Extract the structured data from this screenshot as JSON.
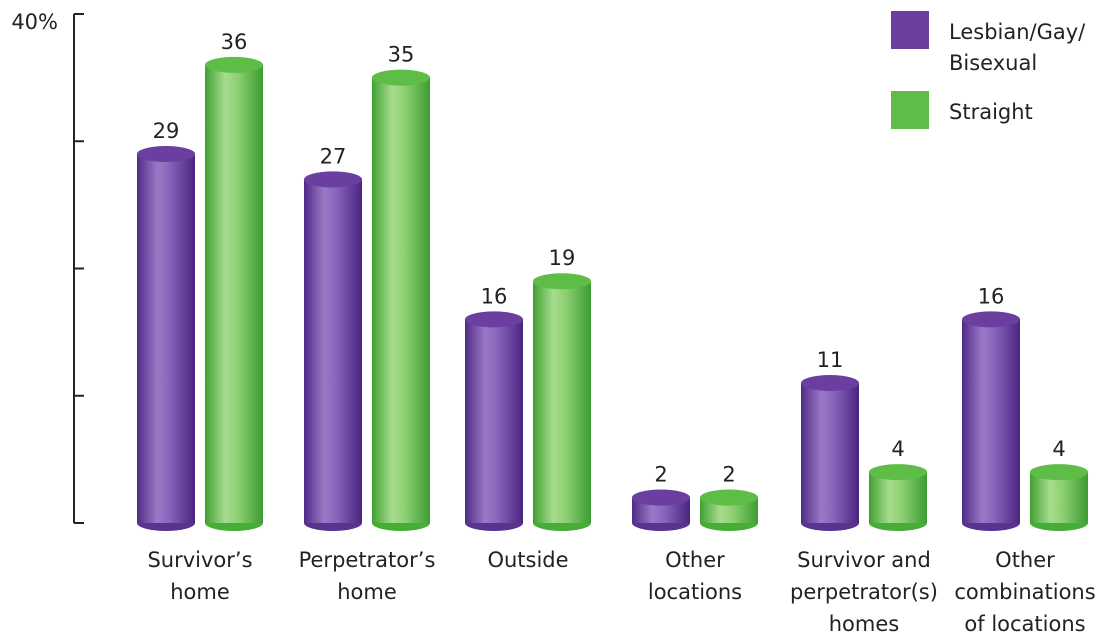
{
  "chart_data": {
    "type": "bar",
    "title": "",
    "xlabel": "",
    "ylabel": "",
    "y_tick_labels": [
      "40%"
    ],
    "ylim": [
      0,
      40
    ],
    "grid": false,
    "legend_position": "top-right",
    "categories": [
      [
        "Survivor’s",
        "home"
      ],
      [
        "Perpetrator’s",
        "home"
      ],
      [
        "Outside"
      ],
      [
        "Other",
        "locations"
      ],
      [
        "Survivor and",
        "perpetrator(s)",
        "homes"
      ],
      [
        "Other",
        "combinations",
        "of locations"
      ]
    ],
    "series": [
      {
        "name": [
          "Lesbian/Gay/",
          "Bisexual"
        ],
        "color": "#6a3f9f",
        "values": [
          29,
          27,
          16,
          2,
          11,
          16
        ]
      },
      {
        "name": [
          "Straight"
        ],
        "color": "#5dbd47",
        "values": [
          36,
          35,
          19,
          2,
          4,
          4
        ]
      }
    ]
  }
}
